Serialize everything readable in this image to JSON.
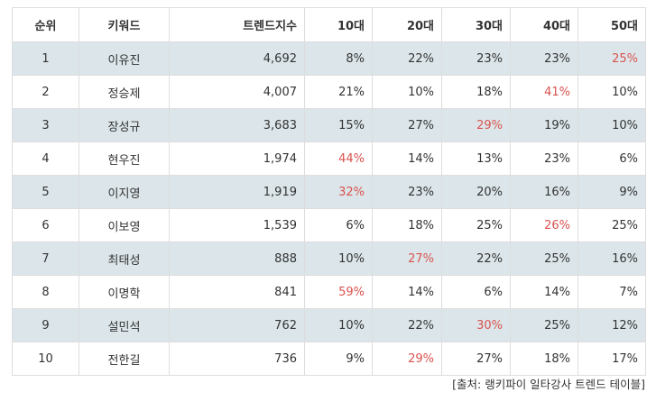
{
  "headers": [
    "순위",
    "키워드",
    "트렌드지수",
    "10대",
    "20대",
    "30대",
    "40대",
    "50대"
  ],
  "rows": [
    {
      "rank": "1",
      "keyword": "이유진",
      "index": "4,692",
      "ages": [
        "8%",
        "22%",
        "23%",
        "23%",
        "25%"
      ],
      "highlight": 4
    },
    {
      "rank": "2",
      "keyword": "정승제",
      "index": "4,007",
      "ages": [
        "21%",
        "10%",
        "18%",
        "41%",
        "10%"
      ],
      "highlight": 3
    },
    {
      "rank": "3",
      "keyword": "장성규",
      "index": "3,683",
      "ages": [
        "15%",
        "27%",
        "29%",
        "19%",
        "10%"
      ],
      "highlight": 2
    },
    {
      "rank": "4",
      "keyword": "현우진",
      "index": "1,974",
      "ages": [
        "44%",
        "14%",
        "13%",
        "23%",
        "6%"
      ],
      "highlight": 0
    },
    {
      "rank": "5",
      "keyword": "이지영",
      "index": "1,919",
      "ages": [
        "32%",
        "23%",
        "20%",
        "16%",
        "9%"
      ],
      "highlight": 0
    },
    {
      "rank": "6",
      "keyword": "이보영",
      "index": "1,539",
      "ages": [
        "6%",
        "18%",
        "25%",
        "26%",
        "25%"
      ],
      "highlight": 3
    },
    {
      "rank": "7",
      "keyword": "최태성",
      "index": "888",
      "ages": [
        "10%",
        "27%",
        "22%",
        "25%",
        "16%"
      ],
      "highlight": 1
    },
    {
      "rank": "8",
      "keyword": "이명학",
      "index": "841",
      "ages": [
        "59%",
        "14%",
        "6%",
        "14%",
        "7%"
      ],
      "highlight": 0
    },
    {
      "rank": "9",
      "keyword": "설민석",
      "index": "762",
      "ages": [
        "10%",
        "22%",
        "30%",
        "25%",
        "12%"
      ],
      "highlight": 2
    },
    {
      "rank": "10",
      "keyword": "전한길",
      "index": "736",
      "ages": [
        "9%",
        "29%",
        "27%",
        "18%",
        "17%"
      ],
      "highlight": 1
    }
  ],
  "source": "[출처: 랭키파이 일타강사 트렌드 테이블]",
  "colors": {
    "highlight": "#d9534f",
    "alt_row": "#dce6ea",
    "border": "#dddddd"
  }
}
